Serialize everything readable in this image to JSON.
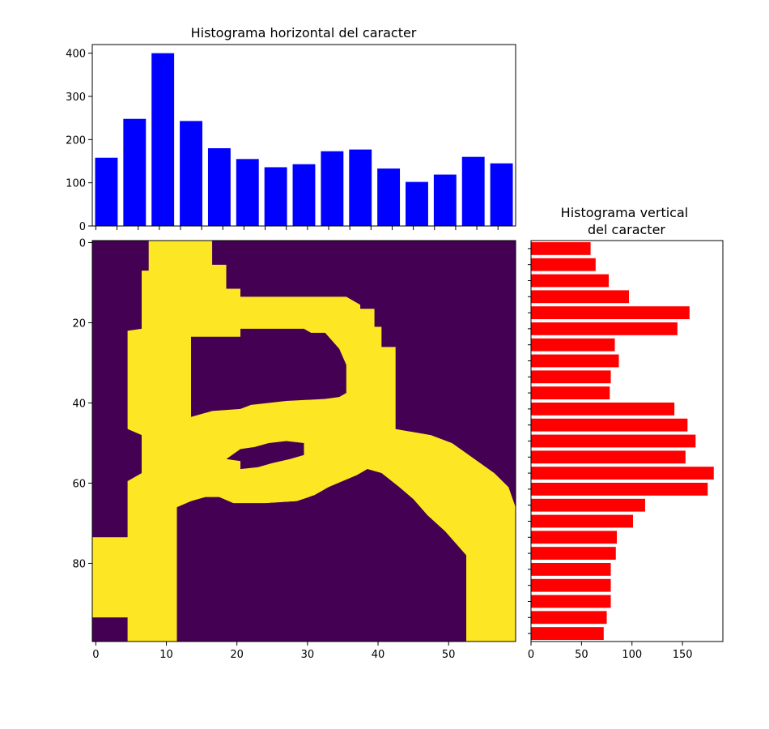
{
  "colors": {
    "horizontal_bars": "#0000ff",
    "vertical_bars": "#ff0000",
    "image_background": "#440154",
    "image_foreground": "#fde725"
  },
  "chart_data": [
    {
      "type": "bar",
      "title": "Histograma horizontal del caracter",
      "xlim": [
        -0.5,
        59.5
      ],
      "ylim": [
        0,
        420
      ],
      "yticks": [
        0,
        100,
        200,
        300,
        400
      ],
      "bins": [
        {
          "x0": 0,
          "x1": 3,
          "value": 158
        },
        {
          "x0": 4,
          "x1": 7,
          "value": 248
        },
        {
          "x0": 8,
          "x1": 11,
          "value": 400
        },
        {
          "x0": 12,
          "x1": 15,
          "value": 243
        },
        {
          "x0": 16,
          "x1": 19,
          "value": 180
        },
        {
          "x0": 20,
          "x1": 23,
          "value": 155
        },
        {
          "x0": 24,
          "x1": 27,
          "value": 136
        },
        {
          "x0": 28,
          "x1": 31,
          "value": 143
        },
        {
          "x0": 32,
          "x1": 35,
          "value": 173
        },
        {
          "x0": 36,
          "x1": 39,
          "value": 177
        },
        {
          "x0": 40,
          "x1": 43,
          "value": 133
        },
        {
          "x0": 44,
          "x1": 47,
          "value": 102
        },
        {
          "x0": 48,
          "x1": 51,
          "value": 119
        },
        {
          "x0": 52,
          "x1": 55,
          "value": 160
        },
        {
          "x0": 56,
          "x1": 59,
          "value": 145
        }
      ],
      "grid": false
    },
    {
      "type": "heatmap",
      "xlim": [
        -0.5,
        59.5
      ],
      "ylim": [
        99.5,
        -0.5
      ],
      "xticks": [
        0,
        10,
        20,
        30,
        40,
        50
      ],
      "yticks": [
        0,
        20,
        40,
        60,
        80
      ],
      "background": 0,
      "foreground": 1,
      "grid": false
    },
    {
      "type": "bar",
      "orientation": "horizontal",
      "title": "Histograma vertical\ndel caracter",
      "xlim": [
        0,
        190
      ],
      "xticks": [
        0,
        50,
        100,
        150
      ],
      "values": [
        59,
        64,
        77,
        97,
        157,
        145,
        83,
        87,
        79,
        78,
        142,
        155,
        163,
        153,
        181,
        175,
        113,
        101,
        85,
        84,
        79,
        79,
        79,
        75,
        72
      ],
      "grid": false
    }
  ]
}
